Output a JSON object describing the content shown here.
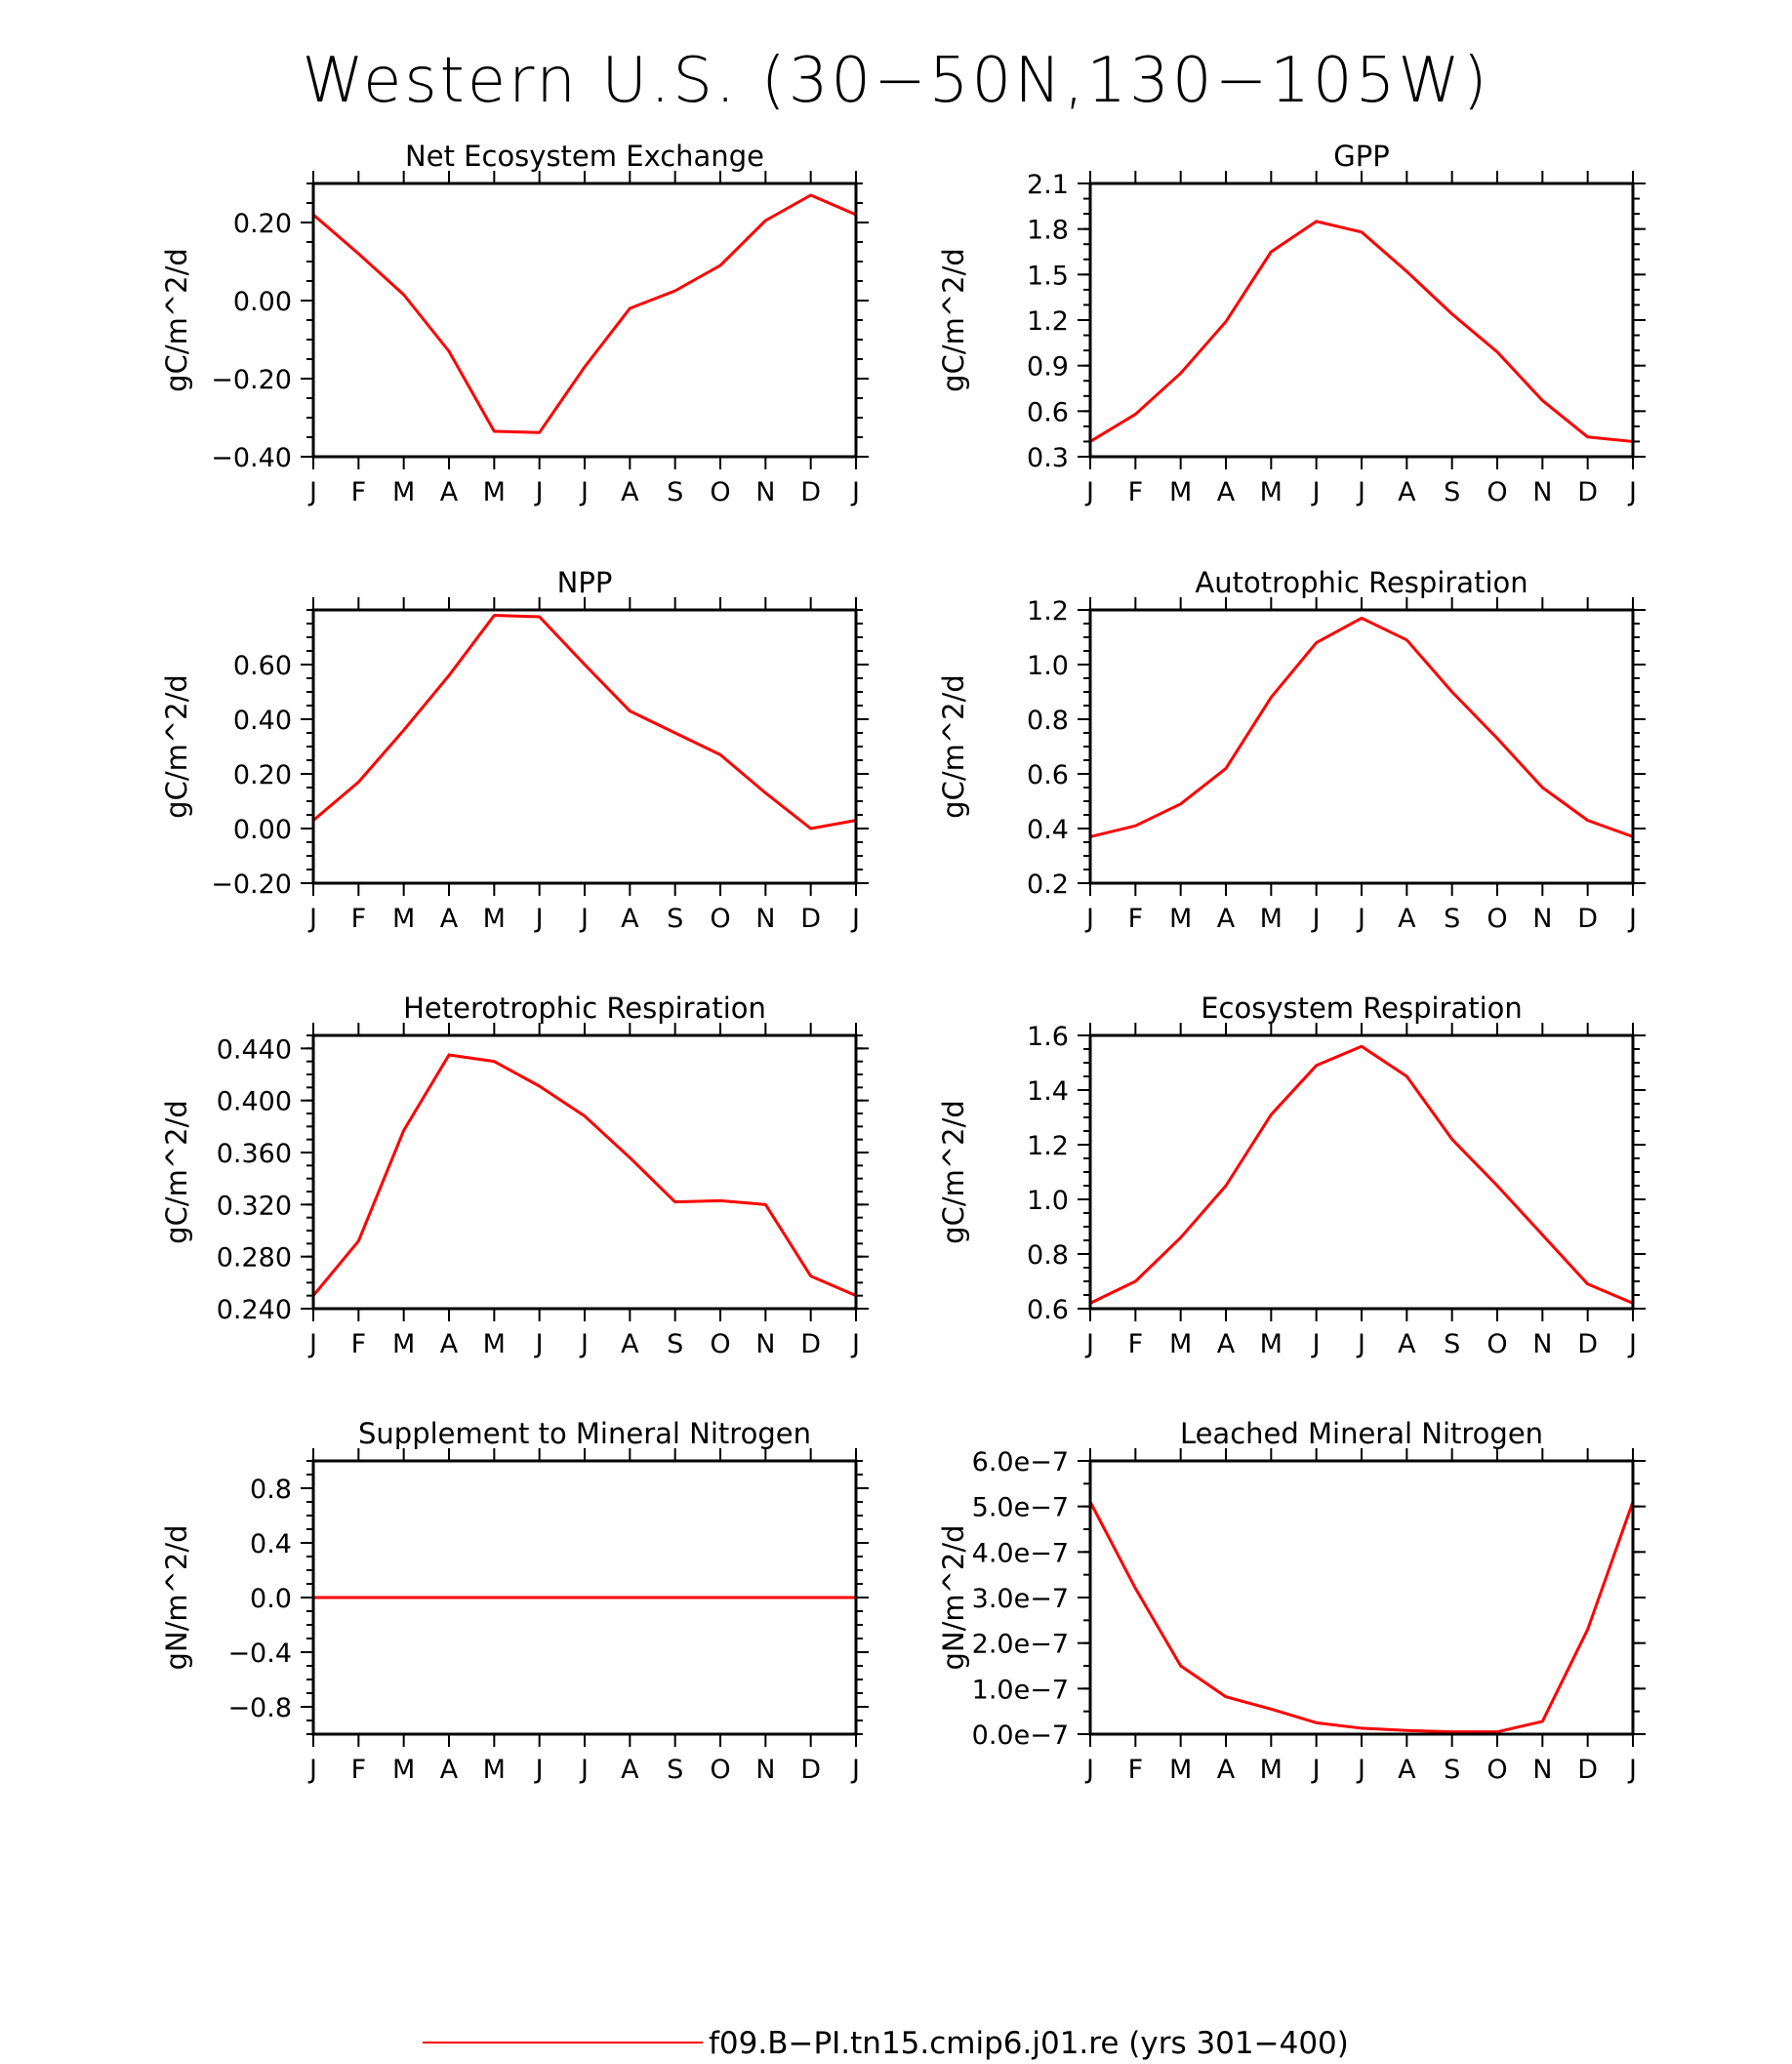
{
  "figure": {
    "title": "Western U.S. (30−50N,130−105W)",
    "legend": "f09.B−PI.tn15.cmip6.j01.re (yrs 301−400)",
    "line_color": "#ff0000"
  },
  "chart_data": [
    {
      "type": "line",
      "title": "Net Ecosystem Exchange",
      "ylabel": "gC/m^2/d",
      "categories": [
        "J",
        "F",
        "M",
        "A",
        "M",
        "J",
        "J",
        "A",
        "S",
        "O",
        "N",
        "D",
        "J"
      ],
      "ylim": [
        -0.4,
        0.3
      ],
      "yticks": [
        -0.4,
        -0.2,
        0.0,
        0.2
      ],
      "ytick_labels": [
        "−0.40",
        "−0.20",
        "0.00",
        "0.20"
      ],
      "minor_step": 0.05,
      "values": [
        0.22,
        0.12,
        0.015,
        -0.13,
        -0.335,
        -0.338,
        -0.17,
        -0.02,
        0.025,
        0.09,
        0.205,
        0.27,
        0.22
      ]
    },
    {
      "type": "line",
      "title": "GPP",
      "ylabel": "gC/m^2/d",
      "categories": [
        "J",
        "F",
        "M",
        "A",
        "M",
        "J",
        "J",
        "A",
        "S",
        "O",
        "N",
        "D",
        "J"
      ],
      "ylim": [
        0.3,
        2.1
      ],
      "yticks": [
        0.3,
        0.6,
        0.9,
        1.2,
        1.5,
        1.8,
        2.1
      ],
      "ytick_labels": [
        "0.3",
        "0.6",
        "0.9",
        "1.2",
        "1.5",
        "1.8",
        "2.1"
      ],
      "minor_step": 0.1,
      "values": [
        0.4,
        0.58,
        0.85,
        1.19,
        1.65,
        1.85,
        1.78,
        1.52,
        1.24,
        0.99,
        0.67,
        0.43,
        0.4
      ]
    },
    {
      "type": "line",
      "title": "NPP",
      "ylabel": "gC/m^2/d",
      "categories": [
        "J",
        "F",
        "M",
        "A",
        "M",
        "J",
        "J",
        "A",
        "S",
        "O",
        "N",
        "D",
        "J"
      ],
      "ylim": [
        -0.2,
        0.8
      ],
      "yticks": [
        -0.2,
        0.0,
        0.2,
        0.4,
        0.6
      ],
      "ytick_labels": [
        "−0.20",
        "0.00",
        "0.20",
        "0.40",
        "0.60"
      ],
      "minor_step": 0.05,
      "values": [
        0.03,
        0.17,
        0.36,
        0.56,
        0.78,
        0.775,
        0.6,
        0.43,
        0.35,
        0.27,
        0.13,
        0.0,
        0.03
      ]
    },
    {
      "type": "line",
      "title": "Autotrophic Respiration",
      "ylabel": "gC/m^2/d",
      "categories": [
        "J",
        "F",
        "M",
        "A",
        "M",
        "J",
        "J",
        "A",
        "S",
        "O",
        "N",
        "D",
        "J"
      ],
      "ylim": [
        0.2,
        1.2
      ],
      "yticks": [
        0.2,
        0.4,
        0.6,
        0.8,
        1.0,
        1.2
      ],
      "ytick_labels": [
        "0.2",
        "0.4",
        "0.6",
        "0.8",
        "1.0",
        "1.2"
      ],
      "minor_step": 0.05,
      "values": [
        0.37,
        0.41,
        0.49,
        0.62,
        0.88,
        1.08,
        1.17,
        1.09,
        0.9,
        0.73,
        0.55,
        0.43,
        0.37
      ]
    },
    {
      "type": "line",
      "title": "Heterotrophic Respiration",
      "ylabel": "gC/m^2/d",
      "categories": [
        "J",
        "F",
        "M",
        "A",
        "M",
        "J",
        "J",
        "A",
        "S",
        "O",
        "N",
        "D",
        "J"
      ],
      "ylim": [
        0.24,
        0.45
      ],
      "yticks": [
        0.24,
        0.28,
        0.32,
        0.36,
        0.4,
        0.44
      ],
      "ytick_labels": [
        "0.240",
        "0.280",
        "0.320",
        "0.360",
        "0.400",
        "0.440"
      ],
      "minor_step": 0.01,
      "values": [
        0.25,
        0.292,
        0.377,
        0.435,
        0.43,
        0.411,
        0.388,
        0.356,
        0.322,
        0.323,
        0.32,
        0.265,
        0.25
      ]
    },
    {
      "type": "line",
      "title": "Ecosystem Respiration",
      "ylabel": "gC/m^2/d",
      "categories": [
        "J",
        "F",
        "M",
        "A",
        "M",
        "J",
        "J",
        "A",
        "S",
        "O",
        "N",
        "D",
        "J"
      ],
      "ylim": [
        0.6,
        1.6
      ],
      "yticks": [
        0.6,
        0.8,
        1.0,
        1.2,
        1.4,
        1.6
      ],
      "ytick_labels": [
        "0.6",
        "0.8",
        "1.0",
        "1.2",
        "1.4",
        "1.6"
      ],
      "minor_step": 0.05,
      "values": [
        0.62,
        0.7,
        0.86,
        1.05,
        1.31,
        1.49,
        1.56,
        1.45,
        1.22,
        1.05,
        0.87,
        0.69,
        0.62
      ]
    },
    {
      "type": "line",
      "title": "Supplement to Mineral Nitrogen",
      "ylabel": "gN/m^2/d",
      "categories": [
        "J",
        "F",
        "M",
        "A",
        "M",
        "J",
        "J",
        "A",
        "S",
        "O",
        "N",
        "D",
        "J"
      ],
      "ylim": [
        -1.0,
        1.0
      ],
      "yticks": [
        -0.8,
        -0.4,
        0.0,
        0.4,
        0.8
      ],
      "ytick_labels": [
        "−0.8",
        "−0.4",
        "0.0",
        "0.4",
        "0.8"
      ],
      "minor_step": 0.1,
      "values": [
        0,
        0,
        0,
        0,
        0,
        0,
        0,
        0,
        0,
        0,
        0,
        0,
        0
      ]
    },
    {
      "type": "line",
      "title": "Leached Mineral Nitrogen",
      "ylabel": "gN/m^2/d",
      "categories": [
        "J",
        "F",
        "M",
        "A",
        "M",
        "J",
        "J",
        "A",
        "S",
        "O",
        "N",
        "D",
        "J"
      ],
      "ylim": [
        0.0,
        6e-07
      ],
      "yticks": [
        0,
        1e-07,
        2e-07,
        3e-07,
        4e-07,
        5e-07,
        6e-07
      ],
      "ytick_labels": [
        "0.0e−7",
        "1.0e−7",
        "2.0e−7",
        "3.0e−7",
        "4.0e−7",
        "5.0e−7",
        "6.0e−7"
      ],
      "minor_step": 5e-08,
      "values": [
        5.1e-07,
        3.2e-07,
        1.5e-07,
        8.2e-08,
        5.5e-08,
        2.5e-08,
        1.3e-08,
        8e-09,
        5e-09,
        5e-09,
        2.8e-08,
        2.3e-07,
        5.1e-07
      ]
    }
  ]
}
